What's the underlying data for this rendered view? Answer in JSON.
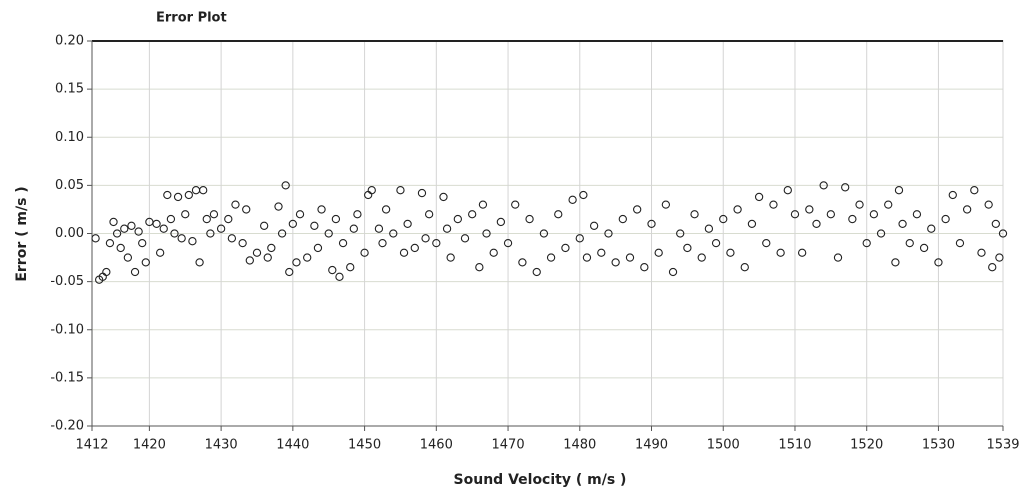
{
  "chart_data": {
    "type": "scatter",
    "title": "Error Plot",
    "x_label": "Sound Velocity ( m/s )",
    "y_label": "Error ( m/s )",
    "color": "#222222",
    "grid": true,
    "xlim": [
      1412,
      1539
    ],
    "xticks": [
      1412,
      1420,
      1430,
      1440,
      1450,
      1460,
      1470,
      1480,
      1490,
      1500,
      1510,
      1520,
      1530,
      1539
    ],
    "ylim": [
      -0.2,
      0.2
    ],
    "yticks": [
      {
        "value": 0.2,
        "label": "0.20"
      },
      0.15,
      {
        "value": 0.1,
        "label": "0.10"
      },
      0.05,
      {
        "value": 0,
        "label": "0.00"
      },
      -0.05,
      {
        "value": -0.1,
        "label": "-0.10"
      },
      -0.15,
      {
        "value": -0.2,
        "label": "-0.20"
      }
    ],
    "x": [
      1412.5,
      1413,
      1413.5,
      1414,
      1414.5,
      1415,
      1415.5,
      1416,
      1416.5,
      1417,
      1417.5,
      1418,
      1418.5,
      1419,
      1419.5,
      1420,
      1421,
      1421.5,
      1422,
      1422.5,
      1423,
      1423.5,
      1424,
      1424.5,
      1425,
      1425.5,
      1426,
      1426.5,
      1427,
      1427.5,
      1428,
      1428.5,
      1429,
      1430,
      1431,
      1431.5,
      1432,
      1433,
      1433.5,
      1434,
      1435,
      1436,
      1436.5,
      1437,
      1438,
      1438.5,
      1439,
      1439.5,
      1440,
      1440.5,
      1441,
      1442,
      1443,
      1443.5,
      1444,
      1445,
      1445.5,
      1446,
      1446.5,
      1447,
      1448,
      1448.5,
      1449,
      1450,
      1450.5,
      1451,
      1452,
      1452.5,
      1453,
      1454,
      1455,
      1455.5,
      1456,
      1457,
      1458,
      1458.5,
      1459,
      1460,
      1461,
      1461.5,
      1462,
      1463,
      1464,
      1465,
      1466,
      1466.5,
      1467,
      1468,
      1469,
      1470,
      1471,
      1472,
      1473,
      1474,
      1475,
      1476,
      1477,
      1478,
      1479,
      1480,
      1480.5,
      1481,
      1482,
      1483,
      1484,
      1485,
      1486,
      1487,
      1488,
      1489,
      1490,
      1491,
      1492,
      1493,
      1494,
      1495,
      1496,
      1497,
      1498,
      1499,
      1500,
      1501,
      1502,
      1503,
      1504,
      1505,
      1506,
      1507,
      1508,
      1509,
      1510,
      1511,
      1512,
      1513,
      1514,
      1515,
      1516,
      1517,
      1518,
      1519,
      1520,
      1521,
      1522,
      1523,
      1524,
      1524.5,
      1525,
      1526,
      1527,
      1528,
      1529,
      1530,
      1531,
      1532,
      1533,
      1534,
      1535,
      1536,
      1537,
      1537.5,
      1538,
      1538.5,
      1539
    ],
    "values": [
      -0.005,
      -0.048,
      -0.045,
      -0.04,
      -0.01,
      0.012,
      0,
      -0.015,
      0.005,
      -0.025,
      0.008,
      -0.04,
      0.002,
      -0.01,
      -0.03,
      0.012,
      0.01,
      -0.02,
      0.005,
      0.04,
      0.015,
      0,
      0.038,
      -0.005,
      0.02,
      0.04,
      -0.008,
      0.045,
      -0.03,
      0.045,
      0.015,
      0,
      0.02,
      0.005,
      0.015,
      -0.005,
      0.03,
      -0.01,
      0.025,
      -0.028,
      -0.02,
      0.008,
      -0.025,
      -0.015,
      0.028,
      0,
      0.05,
      -0.04,
      0.01,
      -0.03,
      0.02,
      -0.025,
      0.008,
      -0.015,
      0.025,
      0,
      -0.038,
      0.015,
      -0.045,
      -0.01,
      -0.035,
      0.005,
      0.02,
      -0.02,
      0.04,
      0.045,
      0.005,
      -0.01,
      0.025,
      0,
      0.045,
      -0.02,
      0.01,
      -0.015,
      0.042,
      -0.005,
      0.02,
      -0.01,
      0.038,
      0.005,
      -0.025,
      0.015,
      -0.005,
      0.02,
      -0.035,
      0.03,
      0,
      -0.02,
      0.012,
      -0.01,
      0.03,
      -0.03,
      0.015,
      -0.04,
      0,
      -0.025,
      0.02,
      -0.015,
      0.035,
      -0.005,
      0.04,
      -0.025,
      0.008,
      -0.02,
      0,
      -0.03,
      0.015,
      -0.025,
      0.025,
      -0.035,
      0.01,
      -0.02,
      0.03,
      -0.04,
      0,
      -0.015,
      0.02,
      -0.025,
      0.005,
      -0.01,
      0.015,
      -0.02,
      0.025,
      -0.035,
      0.01,
      0.038,
      -0.01,
      0.03,
      -0.02,
      0.045,
      0.02,
      -0.02,
      0.025,
      0.01,
      0.05,
      0.02,
      -0.025,
      0.048,
      0.015,
      0.03,
      -0.01,
      0.02,
      0,
      0.03,
      -0.03,
      0.045,
      0.01,
      -0.01,
      0.02,
      -0.015,
      0.005,
      -0.03,
      0.015,
      0.04,
      -0.01,
      0.025,
      0.045,
      -0.02,
      0.03,
      -0.035,
      0.01,
      -0.025,
      0
    ]
  }
}
